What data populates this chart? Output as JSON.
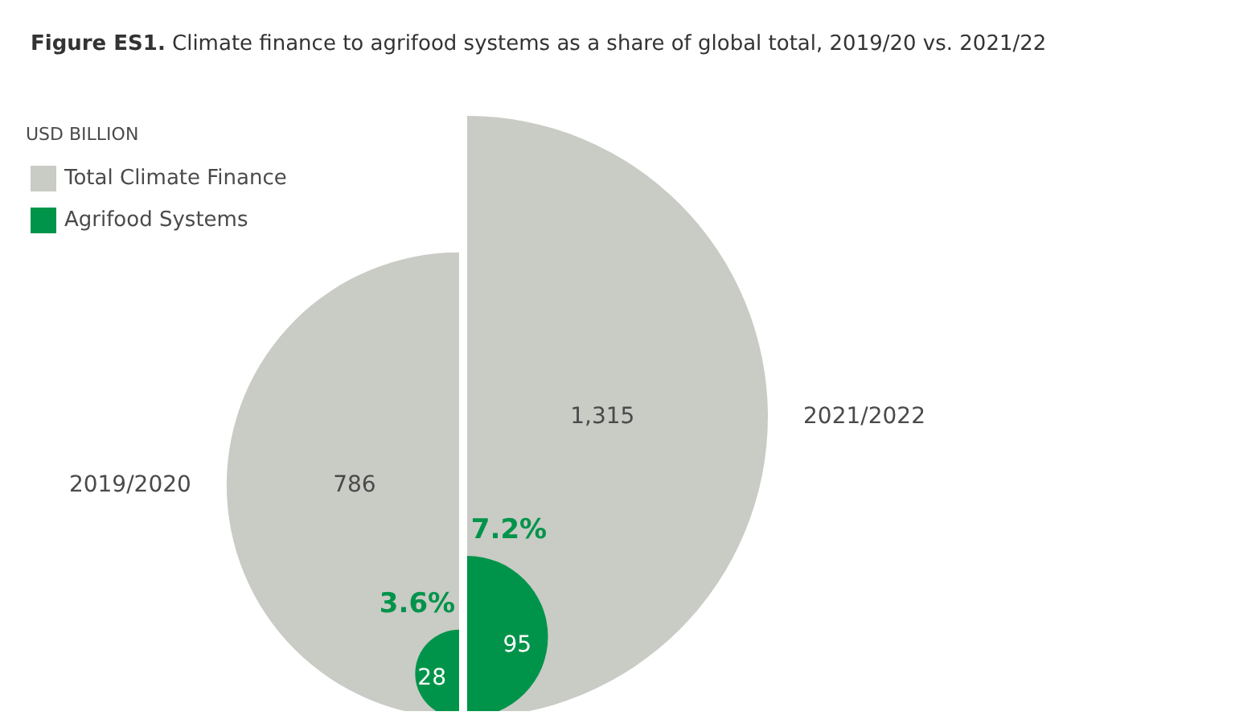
{
  "chart_data": {
    "type": "other",
    "title": "Figure ES1. Climate finance to agrifood systems as a share of global total, 2019/20 vs. 2021/22",
    "legend_title": "USD BILLION",
    "legend": "top left",
    "categories": [
      "2019/2020",
      "2021/2022"
    ],
    "series": [
      {
        "name": "Total Climate Finance",
        "color": "#c9cbc5",
        "values": [
          786,
          1315
        ],
        "value_labels": [
          "786",
          "1,315"
        ]
      },
      {
        "name": "Agrifood Systems",
        "color": "#00944a",
        "values": [
          28,
          95
        ],
        "value_labels": [
          "28",
          "95"
        ]
      }
    ],
    "annotations": [
      {
        "text": "3.6%",
        "x": "2019/2020"
      },
      {
        "text": "7.2%",
        "x": "2021/2022"
      }
    ]
  }
}
